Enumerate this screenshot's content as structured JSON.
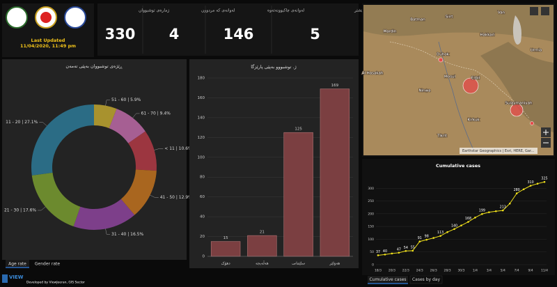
{
  "header": {
    "last_updated": {
      "label": "Last Updated",
      "date": "11/04/2020, 11:49 pm"
    }
  },
  "stats": [
    {
      "label": "ژمارەی توشبووان",
      "value": 330
    },
    {
      "label": "لەوانەی کە مردوون",
      "value": 4
    },
    {
      "label": "لەوانەی چاکبوونەتەوە",
      "value": 146
    },
    {
      "label": "ژ. توشبووانی ٢٤ کاتژمێری پێشتر",
      "value": 5
    }
  ],
  "age_chart": {
    "chart_data": {
      "type": "donut",
      "title": "ڕێژەی توشبووان بەپێی تەمەن",
      "values": [
        5.9,
        9.4,
        10.6,
        12.9,
        16.5,
        17.6,
        27.1
      ],
      "value_labels": [
        "51 - 60 | 5.9%",
        "61 - 70 | 9.4%",
        "< 11 | 10.6%",
        "41 - 50 | 12.9%",
        "31 - 40 | 16.5%",
        "21 - 30 | 17.6%",
        "11 - 20 | 27.1%"
      ],
      "colors": [
        "#a8922e",
        "#a65f93",
        "#9c3640",
        "#a9661f",
        "#7d3f8a",
        "#6c8a2e",
        "#2b6c85"
      ]
    },
    "tabs": [
      "Age rate",
      "Gender rate"
    ]
  },
  "province_chart": {
    "chart_data": {
      "type": "bar",
      "title": "ژ. توشبووو بەپێی پارێزگا",
      "categories": [
        "دهۆک",
        "هەڵەبجە",
        "سلێمانی",
        "هەولێر"
      ],
      "values": [
        15,
        21,
        125,
        169
      ],
      "color": "#7b3f41",
      "ylim": [
        0,
        180
      ],
      "yticks": [
        0,
        20,
        40,
        60,
        80,
        100,
        120,
        140,
        160,
        180
      ],
      "grid": true
    }
  },
  "map": {
    "labels": [
      "Batman",
      "Siirt",
      "Van",
      "Mardin",
      "Hakkari",
      "Urmia",
      "Duhok",
      "Mosul",
      "Erbil",
      "Ninwa",
      "Kirkuk",
      "Sulaymaniyah",
      "Tikrit",
      "Al Hasakah"
    ],
    "attribution": "Earthstar Geographics | Esri, HERE, Gar..."
  },
  "cumulative_chart": {
    "chart_data": {
      "type": "line",
      "title": "Cumulative cases",
      "categories": [
        "18/3",
        null,
        "20/3",
        null,
        "22/3",
        null,
        "24/3",
        null,
        "26/3",
        null,
        "28/3",
        null,
        "30/3",
        null,
        "1/4",
        null,
        "3/4",
        null,
        "5/4",
        null,
        "7/4",
        null,
        "9/4",
        null,
        "11/4"
      ],
      "series": [
        {
          "name": "Cumulative cases",
          "color": "#f2e21b",
          "values": [
            37,
            40,
            44,
            47,
            54,
            55,
            91,
            98,
            105,
            113,
            128,
            140,
            154,
            168,
            185,
            199,
            206,
            210,
            213,
            240,
            280,
            296,
            310,
            318,
            325
          ],
          "value_labels": [
            "37",
            "40",
            null,
            "47",
            "54",
            "55",
            "91",
            "98",
            null,
            "113",
            null,
            "140",
            null,
            "168",
            null,
            "199",
            null,
            null,
            "213",
            null,
            "280",
            null,
            "310",
            null,
            "325"
          ]
        }
      ],
      "ylim": [
        0,
        350
      ],
      "yticks": [
        0,
        50,
        100,
        150,
        200,
        250,
        300
      ],
      "grid": true
    },
    "tabs": [
      "Cumulative cases",
      "Cases by day"
    ]
  },
  "footer": {
    "brand": "VIEW",
    "credit": "Developed by ViewJeeran, GIS Sector"
  }
}
